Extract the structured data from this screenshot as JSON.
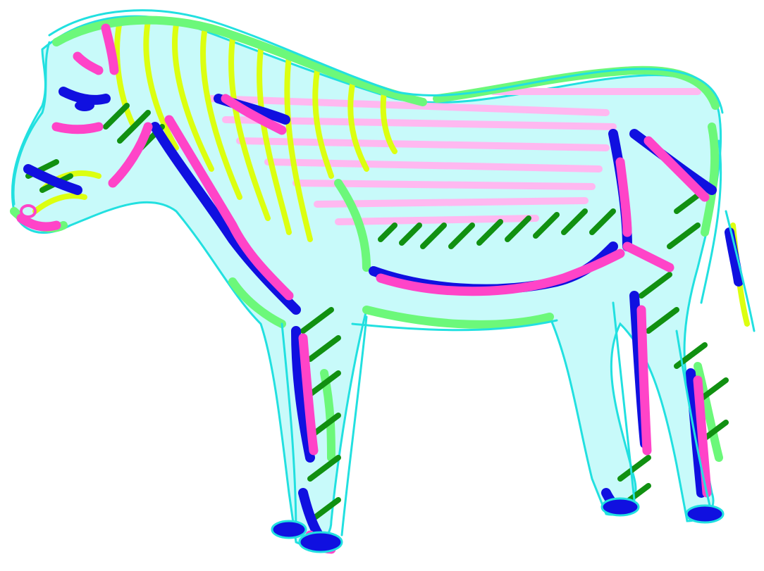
{
  "scene": {
    "subject": "zebra-drawing",
    "background": "#ffffff"
  },
  "palette": {
    "outline_cyan": "#22e0e0",
    "body_lightcyan": "#c8fafa",
    "stripe_pink": "#ffb8f0",
    "hot_pink": "#ff44c8",
    "royal_blue": "#1010e0",
    "grass_green": "#119011",
    "mint_green": "#6cf87a",
    "lime_yellow": "#dcff10"
  }
}
